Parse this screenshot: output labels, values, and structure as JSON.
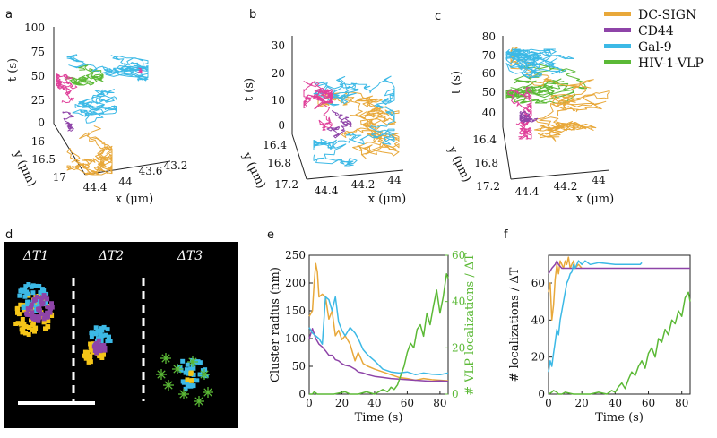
{
  "panels": {
    "a": {
      "label": "a",
      "z_label": "t (s)",
      "y_label": "y (μm)",
      "x_label": "x (μm)",
      "z_ticks": [
        "100",
        "75",
        "50",
        "25",
        "0"
      ],
      "y_ticks": [
        "16",
        "16.5",
        "17"
      ],
      "x_ticks": [
        "44.4",
        "44",
        "43.6",
        "43.2"
      ]
    },
    "b": {
      "label": "b",
      "z_label": "t (s)",
      "y_label": "y (μm)",
      "x_label": "x (μm)",
      "z_ticks": [
        "30",
        "20",
        "10",
        "0"
      ],
      "y_ticks": [
        "16.4",
        "16.8",
        "17.2"
      ],
      "x_ticks": [
        "44.4",
        "44.2",
        "44"
      ]
    },
    "c": {
      "label": "c",
      "z_label": "t (s)",
      "y_label": "y (μm)",
      "x_label": "x (μm)",
      "z_ticks": [
        "80",
        "70",
        "60",
        "50",
        "40"
      ],
      "y_ticks": [
        "16.4",
        "16.8",
        "17.2"
      ],
      "x_ticks": [
        "44.4",
        "44.2",
        "44"
      ]
    },
    "d": {
      "label": "d",
      "dt1": "ΔT1",
      "dt2": "ΔT2",
      "dt3": "ΔT3"
    },
    "e": {
      "label": "e"
    },
    "f": {
      "label": "f"
    }
  },
  "legend": [
    {
      "name": "DC-SIGN",
      "color": "#E8A83A"
    },
    {
      "name": "CD44",
      "color": "#8E44A8"
    },
    {
      "name": "Gal-9",
      "color": "#3CB9E6"
    },
    {
      "name": "HIV-1-VLP",
      "color": "#5BB936"
    }
  ],
  "colors": {
    "dcsign": "#E8A83A",
    "cd44": "#8E44A8",
    "gal9": "#3CB9E6",
    "vlp": "#5BB936",
    "magenta": "#E0409A",
    "yellow": "#F5C518"
  },
  "chart_data": [
    {
      "type": "line",
      "panel": "e",
      "xlabel": "Time (s)",
      "ylabel": "Cluster radius (nm)",
      "ylabel_right": "# VLP localizations / ΔT",
      "xlim": [
        0,
        85
      ],
      "ylim": [
        0,
        250
      ],
      "ylim_right": [
        0,
        60
      ],
      "xticks": [
        0,
        20,
        40,
        60,
        80
      ],
      "yticks": [
        0,
        50,
        100,
        150,
        200,
        250
      ],
      "yticks_right": [
        0,
        20,
        40,
        60
      ],
      "series": [
        {
          "name": "DC-SIGN",
          "axis": "left",
          "color": "#E8A83A",
          "x": [
            0,
            2,
            3,
            4,
            5,
            6,
            8,
            10,
            12,
            14,
            16,
            18,
            20,
            22,
            25,
            28,
            30,
            33,
            36,
            40,
            45,
            50,
            55,
            60,
            65,
            70,
            75,
            80,
            85
          ],
          "y": [
            140,
            150,
            200,
            235,
            220,
            175,
            180,
            175,
            135,
            150,
            105,
            115,
            98,
            105,
            90,
            60,
            75,
            55,
            50,
            45,
            40,
            35,
            30,
            28,
            25,
            28,
            26,
            25,
            24
          ]
        },
        {
          "name": "CD44",
          "axis": "left",
          "color": "#8E44A8",
          "x": [
            0,
            2,
            4,
            6,
            8,
            10,
            12,
            14,
            16,
            18,
            20,
            22,
            25,
            28,
            30,
            33,
            36,
            40,
            45,
            50,
            55,
            60,
            65,
            70,
            75,
            80,
            85
          ],
          "y": [
            100,
            118,
            100,
            90,
            85,
            78,
            70,
            70,
            62,
            60,
            55,
            52,
            50,
            45,
            40,
            38,
            35,
            32,
            30,
            28,
            27,
            26,
            25,
            24,
            23,
            24,
            23
          ]
        },
        {
          "name": "Gal-9",
          "axis": "left",
          "color": "#3CB9E6",
          "x": [
            0,
            2,
            4,
            6,
            8,
            10,
            12,
            14,
            16,
            18,
            20,
            22,
            25,
            28,
            30,
            33,
            36,
            40,
            45,
            50,
            55,
            60,
            65,
            70,
            75,
            80,
            85
          ],
          "y": [
            120,
            110,
            105,
            100,
            90,
            175,
            170,
            150,
            175,
            130,
            115,
            105,
            120,
            110,
            100,
            80,
            70,
            60,
            45,
            40,
            38,
            40,
            35,
            38,
            36,
            35,
            38
          ]
        },
        {
          "name": "HIV-1-VLP",
          "axis": "right",
          "color": "#5BB936",
          "x": [
            0,
            2,
            3,
            5,
            8,
            15,
            22,
            25,
            28,
            30,
            35,
            40,
            45,
            48,
            50,
            52,
            54,
            56,
            58,
            60,
            62,
            64,
            66,
            68,
            70,
            72,
            74,
            76,
            78,
            80,
            82,
            84,
            85
          ],
          "y": [
            0,
            0,
            1,
            0,
            0,
            0,
            1,
            0,
            0,
            0,
            1,
            0,
            2,
            1,
            3,
            2,
            4,
            8,
            12,
            18,
            22,
            20,
            28,
            30,
            25,
            35,
            30,
            38,
            45,
            35,
            42,
            52,
            50
          ]
        }
      ]
    },
    {
      "type": "line",
      "panel": "f",
      "xlabel": "Time (s)",
      "ylabel": "# localizations / ΔT",
      "xlim": [
        0,
        85
      ],
      "ylim": [
        0,
        75
      ],
      "xticks": [
        0,
        20,
        40,
        60,
        80
      ],
      "yticks": [
        0,
        20,
        40,
        60
      ],
      "series": [
        {
          "name": "DC-SIGN",
          "color": "#E8A83A",
          "x": [
            0,
            1,
            2,
            3,
            4,
            5,
            6,
            7,
            8,
            9,
            10,
            11,
            12,
            13,
            14,
            15,
            16,
            18,
            20
          ],
          "y": [
            55,
            60,
            40,
            48,
            62,
            70,
            65,
            72,
            70,
            68,
            72,
            70,
            74,
            68,
            70,
            72,
            68,
            70,
            68
          ]
        },
        {
          "name": "CD44",
          "color": "#8E44A8",
          "x": [
            0,
            2,
            4,
            5,
            6,
            8,
            10,
            20,
            40,
            60,
            85
          ],
          "y": [
            65,
            68,
            70,
            72,
            70,
            68,
            68,
            68,
            68,
            68,
            68
          ]
        },
        {
          "name": "Gal-9",
          "color": "#3CB9E6",
          "x": [
            0,
            1,
            2,
            3,
            4,
            5,
            6,
            7,
            8,
            9,
            10,
            11,
            12,
            13,
            14,
            15,
            16,
            18,
            20,
            22,
            25,
            30,
            40,
            55,
            56
          ],
          "y": [
            12,
            18,
            15,
            22,
            28,
            35,
            32,
            40,
            45,
            50,
            55,
            60,
            62,
            65,
            66,
            70,
            68,
            72,
            70,
            72,
            70,
            71,
            70,
            70,
            71
          ]
        },
        {
          "name": "HIV-1-VLP",
          "color": "#5BB936",
          "x": [
            0,
            2,
            3,
            5,
            6,
            8,
            10,
            15,
            20,
            25,
            30,
            35,
            38,
            40,
            42,
            44,
            46,
            48,
            50,
            52,
            54,
            56,
            58,
            60,
            62,
            64,
            66,
            68,
            70,
            72,
            74,
            76,
            78,
            80,
            82,
            84,
            85
          ],
          "y": [
            0,
            1,
            2,
            1,
            0,
            0,
            1,
            0,
            0,
            0,
            1,
            0,
            2,
            1,
            4,
            6,
            3,
            8,
            12,
            10,
            15,
            18,
            14,
            22,
            25,
            20,
            30,
            28,
            35,
            32,
            40,
            38,
            45,
            42,
            52,
            55,
            50
          ]
        }
      ]
    }
  ]
}
